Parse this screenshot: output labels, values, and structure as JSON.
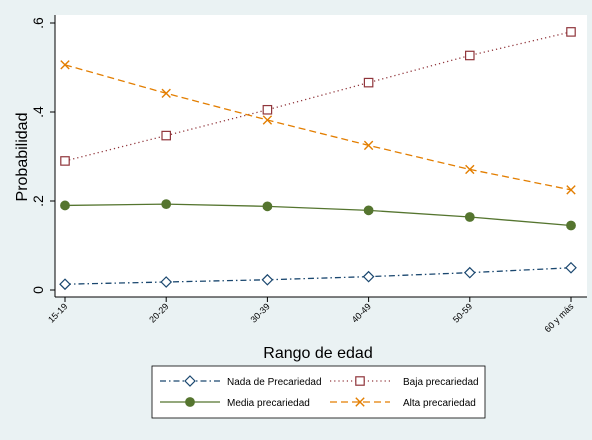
{
  "chart_data": {
    "type": "line",
    "categories": [
      "15-19",
      "20-29",
      "30-39",
      "40-49",
      "50-59",
      "60 y más"
    ],
    "ylabel": "Probabilidad",
    "xlabel": "Rango de edad",
    "yticks": [
      {
        "value": 0,
        "label": "0"
      },
      {
        "value": 0.2,
        "label": ".2"
      },
      {
        "value": 0.4,
        "label": ".4"
      },
      {
        "value": 0.6,
        "label": ".6"
      }
    ],
    "ylim": [
      0,
      0.6
    ],
    "grid": false,
    "legend": "bottom",
    "series": [
      {
        "name": "Nada de Precariedad",
        "values": [
          0.013,
          0.018,
          0.023,
          0.03,
          0.039,
          0.05
        ],
        "color": "#1a476f",
        "marker": "diamond",
        "dash": "dashdot"
      },
      {
        "name": "Baja precariedad",
        "values": [
          0.29,
          0.347,
          0.405,
          0.466,
          0.527,
          0.58
        ],
        "color": "#90353b",
        "marker": "square",
        "dash": "dot"
      },
      {
        "name": "Media precariedad",
        "values": [
          0.19,
          0.193,
          0.188,
          0.179,
          0.164,
          0.145
        ],
        "color": "#55752f",
        "marker": "circle",
        "dash": "solid"
      },
      {
        "name": "Alta precariedad",
        "values": [
          0.506,
          0.442,
          0.382,
          0.325,
          0.271,
          0.225
        ],
        "color": "#e37e00",
        "marker": "x",
        "dash": "dash"
      }
    ]
  }
}
